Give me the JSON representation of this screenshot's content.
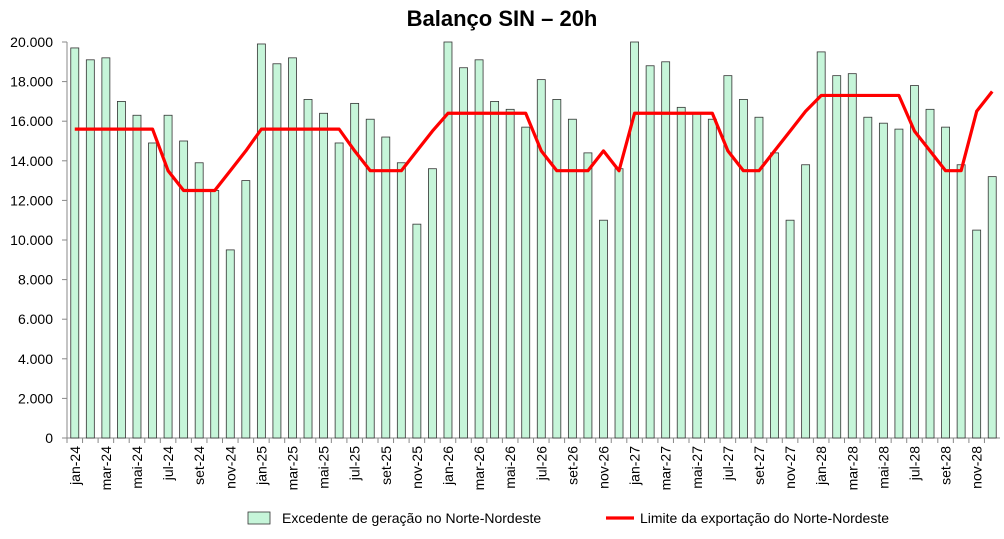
{
  "chart_data": {
    "type": "bar-line",
    "title": "Balanço SIN – 20h",
    "categories": [
      "jan-24",
      null,
      "mar-24",
      null,
      "mai-24",
      null,
      "jul-24",
      null,
      "set-24",
      null,
      "nov-24",
      null,
      "jan-25",
      null,
      "mar-25",
      null,
      "mai-25",
      null,
      "jul-25",
      null,
      "set-25",
      null,
      "nov-25",
      null,
      "jan-26",
      null,
      "mar-26",
      null,
      "mai-26",
      null,
      "jul-26",
      null,
      "set-26",
      null,
      "nov-26",
      null,
      "jan-27",
      null,
      "mar-27",
      null,
      "mai-27",
      null,
      "jul-27",
      null,
      "set-27",
      null,
      "nov-27",
      null,
      "jan-28",
      null,
      "mar-28",
      null,
      "mai-28",
      null,
      "jul-28",
      null,
      "set-28",
      null,
      "nov-28",
      null
    ],
    "series": [
      {
        "name": "Excedente de geração no Norte-Nordeste",
        "type": "bar",
        "color": "#c6f5d9",
        "values": [
          19700,
          19100,
          19200,
          17000,
          16300,
          14900,
          16300,
          15000,
          13900,
          12500,
          9500,
          13000,
          19900,
          18900,
          19200,
          17100,
          16400,
          14900,
          16900,
          16100,
          15200,
          13900,
          10800,
          13600,
          20000,
          18700,
          19100,
          17000,
          16600,
          15700,
          18100,
          17100,
          16100,
          14400,
          11000,
          13600,
          20000,
          18800,
          19000,
          16700,
          16400,
          16100,
          18300,
          17100,
          16200,
          14400,
          11000,
          13800,
          19500,
          18300,
          18400,
          16200,
          15900,
          15600,
          17800,
          16600,
          15700,
          13800,
          10500,
          13200
        ]
      },
      {
        "name": "Limite da exportação do Norte-Nordeste",
        "type": "line",
        "color": "#ff0000",
        "values": [
          15600,
          15600,
          15600,
          15600,
          15600,
          15600,
          13500,
          12500,
          12500,
          12500,
          13500,
          14500,
          15600,
          15600,
          15600,
          15600,
          15600,
          15600,
          14500,
          13500,
          13500,
          13500,
          14500,
          15500,
          16400,
          16400,
          16400,
          16400,
          16400,
          16400,
          14500,
          13500,
          13500,
          13500,
          14500,
          13500,
          16400,
          16400,
          16400,
          16400,
          16400,
          16400,
          14500,
          13500,
          13500,
          14500,
          15500,
          16500,
          17300,
          17300,
          17300,
          17300,
          17300,
          17300,
          15500,
          14500,
          13500,
          13500,
          16500,
          17500
        ]
      }
    ],
    "ylim": [
      0,
      20000
    ],
    "yticks": [
      0,
      {
        "value": 2000,
        "label": "2.000"
      },
      {
        "value": 4000,
        "label": "4.000"
      },
      {
        "value": 6000,
        "label": "6.000"
      },
      {
        "value": 8000,
        "label": "8.000"
      },
      {
        "value": 10000,
        "label": "10.000"
      },
      {
        "value": 12000,
        "label": "12.000"
      },
      {
        "value": 14000,
        "label": "14.000"
      },
      {
        "value": 16000,
        "label": "16.000"
      },
      {
        "value": 18000,
        "label": "18.000"
      },
      {
        "value": 20000,
        "label": "20.000"
      }
    ],
    "grid": false,
    "legend": "bottom"
  }
}
